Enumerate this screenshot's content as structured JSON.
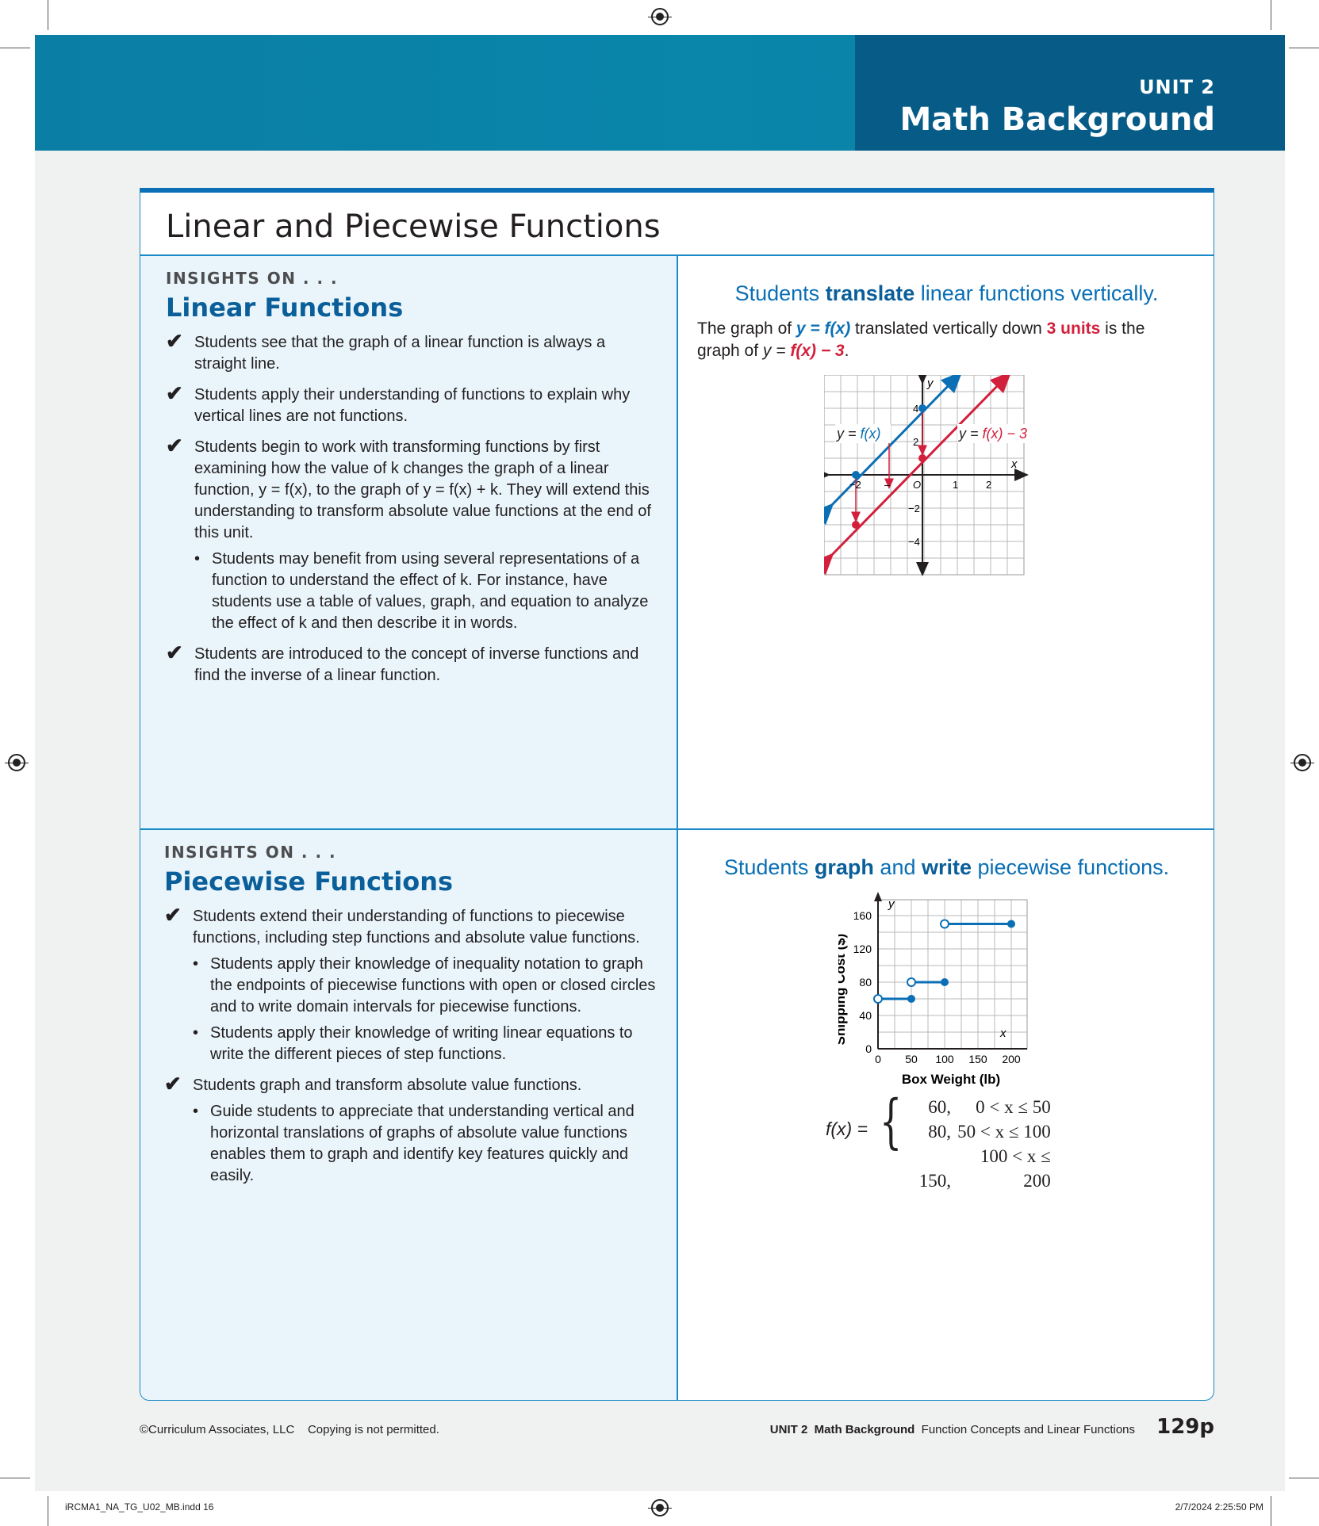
{
  "header": {
    "unit": "UNIT 2",
    "title": "Math Background"
  },
  "panel_title": "Linear and Piecewise Functions",
  "linear": {
    "insights": "INSIGHTS ON . . .",
    "heading": "Linear Functions",
    "items": [
      "Students see that the graph of a linear function is always a straight line.",
      "Students apply their understanding of functions to explain why vertical lines are not functions.",
      "Students begin to work with transforming functions by first examining how the value of k changes the graph of a linear function, y = f(x), to the graph of y = f(x) + k. They will extend this understanding to transform absolute value functions at the end of this unit.",
      "Students are introduced to the concept of inverse functions and find the inverse of a linear function."
    ],
    "sub_bullet": "Students may benefit from using several representations of a function to understand the effect of k. For instance, have students use a table of values, graph, and equation to analyze the effect of k and then describe it in words."
  },
  "translate": {
    "heading_pre": "Students ",
    "heading_bold": "translate",
    "heading_post": " linear functions vertically.",
    "body_1": "The graph of ",
    "body_eq1": "y = f(x)",
    "body_2": " translated vertically down ",
    "body_units": "3 units",
    "body_3": " is the graph of ",
    "body_eq2_y": "y = ",
    "body_eq2_f": "f(x) − 3",
    "body_end": ".",
    "graph": {
      "label_fx": "y = f(x)",
      "label_fx3": "y = f(x) − 3",
      "axis_x": "x",
      "axis_y": "y",
      "origin": "O",
      "ticks": [
        "−2",
        "–",
        "1",
        "2",
        "4",
        "2",
        "−2",
        "−4"
      ]
    }
  },
  "piecewise": {
    "insights": "INSIGHTS ON . . .",
    "heading": "Piecewise Functions",
    "item1": "Students extend their understanding of functions to piecewise functions, including step functions and absolute value functions.",
    "sub1": "Students apply their knowledge of inequality notation to graph the endpoints of piecewise functions with open or closed circles and to write domain intervals for piecewise functions.",
    "sub2": "Students apply their knowledge of writing linear equations to write the different pieces of step functions.",
    "item2": "Students graph and transform absolute value functions.",
    "sub3": "Guide students to appreciate that understanding vertical and horizontal translations of graphs of absolute value functions enables them to graph and identify key features quickly and easily."
  },
  "graph_write": {
    "heading_pre": "Students ",
    "heading_b1": "graph",
    "heading_mid": " and ",
    "heading_b2": "write",
    "heading_post": " piecewise functions.",
    "chart": {
      "ylabel": "Shipping Cost ($)",
      "xlabel": "Box Weight (lb)",
      "axis_x": "x",
      "axis_y": "y",
      "x_ticks": [
        "0",
        "50",
        "100",
        "150",
        "200"
      ],
      "y_ticks": [
        "0",
        "40",
        "80",
        "120",
        "160"
      ]
    },
    "formula": {
      "lhs": "f(x) =",
      "rows": [
        [
          "60,",
          "0 < x ≤ 50"
        ],
        [
          "80,",
          "50 < x ≤ 100"
        ],
        [
          "150,",
          "100 < x ≤ 200"
        ]
      ]
    }
  },
  "chart_data": {
    "type": "line",
    "xlabel": "Box Weight (lb)",
    "ylabel": "Shipping Cost ($)",
    "xlim": [
      0,
      200
    ],
    "ylim": [
      0,
      160
    ],
    "series": [
      {
        "x": [
          0,
          50
        ],
        "y": [
          60,
          60
        ]
      },
      {
        "x": [
          50,
          100
        ],
        "y": [
          80,
          80
        ]
      },
      {
        "x": [
          100,
          200
        ],
        "y": [
          150,
          150
        ]
      }
    ]
  },
  "footer": {
    "copyright": "©Curriculum Associates, LLC",
    "copy_note": "Copying is not permitted.",
    "unit": "UNIT 2",
    "section": "Math Background",
    "topic": "Function Concepts and Linear Functions",
    "page": "129p"
  },
  "slug": {
    "file": "iRCMA1_NA_TG_U02_MB.indd 16",
    "date": "2/7/2024 2:25:50 PM"
  }
}
